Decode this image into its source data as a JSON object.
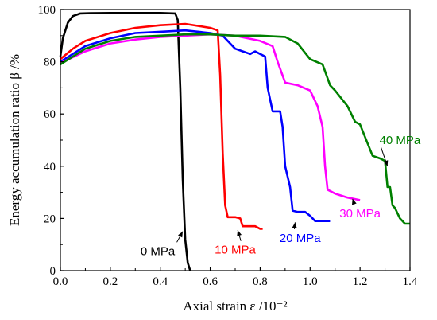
{
  "chart_data": {
    "type": "line",
    "xlabel": "Axial strain ε /10⁻²",
    "ylabel": "Energy accumulation ratio β /%",
    "xlim": [
      0.0,
      1.4
    ],
    "ylim": [
      0,
      100
    ],
    "xticks": [
      "0.0",
      "0.2",
      "0.4",
      "0.6",
      "0.8",
      "1.0",
      "1.2",
      "1.4"
    ],
    "yticks": [
      "0",
      "20",
      "40",
      "60",
      "80",
      "100"
    ],
    "grid": false,
    "legend": "inline labels with arrows",
    "series": [
      {
        "name": "0 MPa",
        "color": "#000000",
        "x": [
          0.0,
          0.01,
          0.03,
          0.05,
          0.08,
          0.12,
          0.2,
          0.3,
          0.4,
          0.46,
          0.47,
          0.48,
          0.49,
          0.5,
          0.51,
          0.52
        ],
        "y": [
          82,
          89,
          95,
          97.5,
          98.5,
          98.6,
          98.7,
          98.7,
          98.7,
          98.5,
          96,
          70,
          35,
          12,
          3,
          0
        ]
      },
      {
        "name": "10 MPa",
        "color": "#ff0000",
        "x": [
          0.0,
          0.05,
          0.1,
          0.2,
          0.3,
          0.4,
          0.5,
          0.6,
          0.63,
          0.64,
          0.65,
          0.66,
          0.67,
          0.7,
          0.72,
          0.73,
          0.76,
          0.78,
          0.8,
          0.81
        ],
        "y": [
          81,
          85,
          88,
          91,
          93,
          94,
          94.5,
          93,
          92,
          75,
          45,
          25,
          20.5,
          20.5,
          20,
          17,
          17,
          17,
          16,
          16
        ]
      },
      {
        "name": "20 MPa",
        "color": "#0000ff",
        "x": [
          0.0,
          0.1,
          0.2,
          0.3,
          0.4,
          0.5,
          0.6,
          0.65,
          0.7,
          0.73,
          0.76,
          0.78,
          0.8,
          0.82,
          0.83,
          0.85,
          0.88,
          0.89,
          0.9,
          0.92,
          0.93,
          0.95,
          0.98,
          1.0,
          1.02,
          1.05,
          1.08
        ],
        "y": [
          80,
          86,
          89,
          91,
          91.5,
          92,
          91,
          90,
          85,
          84,
          83,
          84,
          83,
          82,
          70,
          61,
          61,
          55,
          40,
          32,
          23,
          22.5,
          22.5,
          21,
          19,
          19,
          19
        ]
      },
      {
        "name": "30 MPa",
        "color": "#ff00ff",
        "x": [
          0.0,
          0.1,
          0.2,
          0.3,
          0.4,
          0.5,
          0.6,
          0.7,
          0.8,
          0.85,
          0.87,
          0.9,
          0.95,
          1.0,
          1.03,
          1.05,
          1.06,
          1.07,
          1.1,
          1.15,
          1.2
        ],
        "y": [
          79.5,
          84,
          87,
          88.5,
          89.5,
          90,
          90.5,
          90,
          88,
          86,
          80,
          72,
          71,
          69,
          63,
          55,
          40,
          31,
          29.5,
          28,
          27
        ]
      },
      {
        "name": "40 MPa",
        "color": "#008000",
        "x": [
          0.0,
          0.1,
          0.2,
          0.3,
          0.4,
          0.5,
          0.6,
          0.7,
          0.8,
          0.9,
          0.95,
          1.0,
          1.05,
          1.08,
          1.1,
          1.15,
          1.18,
          1.2,
          1.25,
          1.28,
          1.3,
          1.31,
          1.32,
          1.33,
          1.34,
          1.36,
          1.38,
          1.4
        ],
        "y": [
          79,
          85,
          88,
          89.5,
          90,
          90.5,
          90.5,
          90,
          90,
          89.5,
          87,
          81,
          79,
          71,
          69,
          63,
          57,
          56,
          44,
          43,
          42,
          32,
          32,
          25,
          24,
          20,
          18,
          18
        ]
      }
    ],
    "annotations": [
      {
        "text": "0 MPa",
        "series": 0,
        "label_at": [
          0.39,
          6
        ],
        "point_at": [
          0.49,
          15
        ]
      },
      {
        "text": "10 MPa",
        "series": 1,
        "label_at": [
          0.7,
          6.5
        ],
        "point_at": [
          0.71,
          15.5
        ]
      },
      {
        "text": "20 MPa",
        "series": 2,
        "label_at": [
          0.96,
          11
        ],
        "point_at": [
          0.94,
          18.5
        ]
      },
      {
        "text": "30 MPa",
        "series": 3,
        "label_at": [
          1.2,
          20.5
        ],
        "point_at": [
          1.17,
          27.5
        ]
      },
      {
        "text": "40 MPa",
        "series": 4,
        "label_at": [
          1.36,
          48.5
        ],
        "point_at": [
          1.31,
          40
        ]
      }
    ]
  }
}
